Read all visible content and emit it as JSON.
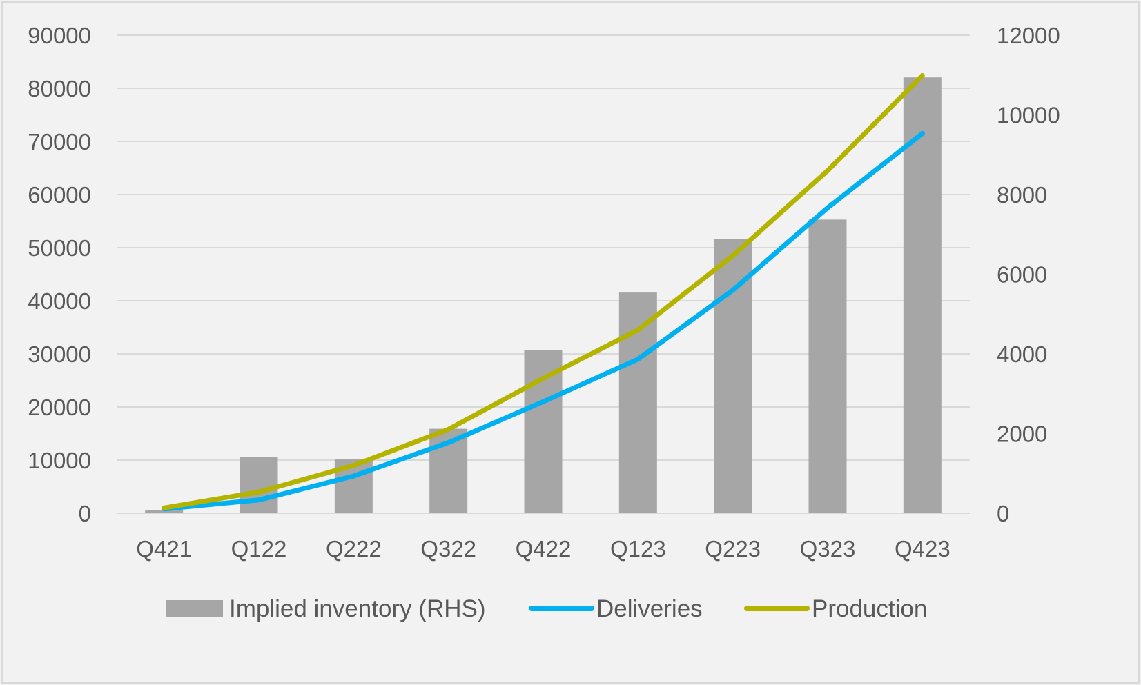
{
  "chart_data": {
    "type": "bar+line",
    "title": "",
    "categories": [
      "Q421",
      "Q122",
      "Q222",
      "Q322",
      "Q422",
      "Q123",
      "Q223",
      "Q323",
      "Q423"
    ],
    "left_axis": {
      "min": 0,
      "max": 90000,
      "ticks": [
        "0",
        "10000",
        "20000",
        "30000",
        "40000",
        "50000",
        "60000",
        "70000",
        "80000",
        "90000"
      ]
    },
    "right_axis": {
      "min": 0,
      "max": 12000,
      "ticks": [
        "0",
        "2000",
        "4000",
        "6000",
        "8000",
        "10000",
        "12000"
      ]
    },
    "grid": true,
    "legend_position": "bottom",
    "series": [
      {
        "name": "Implied inventory (RHS)",
        "kind": "bar",
        "axis": "right",
        "color": "#a6a6a6",
        "values": [
          80,
          1420,
          1350,
          2120,
          4090,
          5540,
          6890,
          7370,
          10940
        ]
      },
      {
        "name": "Deliveries",
        "kind": "line",
        "axis": "left",
        "color": "#00b0f0",
        "values": [
          800,
          2500,
          7000,
          13300,
          21000,
          29000,
          42000,
          57500,
          71500
        ]
      },
      {
        "name": "Production",
        "kind": "line",
        "axis": "left",
        "color": "#b3b300",
        "values": [
          1000,
          4000,
          9000,
          15800,
          25400,
          34500,
          48500,
          64500,
          82400
        ]
      }
    ]
  }
}
